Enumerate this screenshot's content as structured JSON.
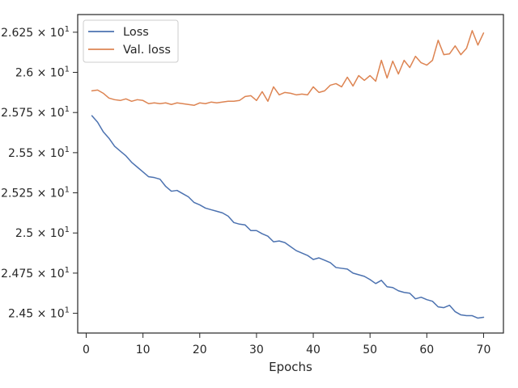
{
  "chart_data": {
    "type": "line",
    "title": "",
    "xlabel": "Epochs",
    "ylabel": "",
    "xlim": [
      -1.5,
      73.5
    ],
    "ylim": [
      24.377,
      26.36
    ],
    "x_ticks": [
      0,
      10,
      20,
      30,
      40,
      50,
      60,
      70
    ],
    "y_ticks": [
      {
        "value": 24.5,
        "label": "2.45 × 10¹"
      },
      {
        "value": 24.75,
        "label": "2.475 × 10¹"
      },
      {
        "value": 25.0,
        "label": "2.5 × 10¹"
      },
      {
        "value": 25.25,
        "label": "2.525 × 10¹"
      },
      {
        "value": 25.5,
        "label": "2.55 × 10¹"
      },
      {
        "value": 25.75,
        "label": "2.575 × 10¹"
      },
      {
        "value": 26.0,
        "label": "2.6 × 10¹"
      },
      {
        "value": 26.25,
        "label": "2.625 × 10¹"
      }
    ],
    "grid": false,
    "legend_position": "top-left",
    "x": [
      1,
      2,
      3,
      4,
      5,
      6,
      7,
      8,
      9,
      10,
      11,
      12,
      13,
      14,
      15,
      16,
      17,
      18,
      19,
      20,
      21,
      22,
      23,
      24,
      25,
      26,
      27,
      28,
      29,
      30,
      31,
      32,
      33,
      34,
      35,
      36,
      37,
      38,
      39,
      40,
      41,
      42,
      43,
      44,
      45,
      46,
      47,
      48,
      49,
      50,
      51,
      52,
      53,
      54,
      55,
      56,
      57,
      58,
      59,
      60,
      61,
      62,
      63,
      64,
      65,
      66,
      67,
      68,
      69,
      70
    ],
    "series": [
      {
        "name": "Loss",
        "color": "#4c72b0",
        "values": [
          25.73,
          25.69,
          25.63,
          25.59,
          25.54,
          25.51,
          25.48,
          25.44,
          25.41,
          25.38,
          25.35,
          25.345,
          25.335,
          25.29,
          25.26,
          25.265,
          25.245,
          25.225,
          25.19,
          25.175,
          25.155,
          25.145,
          25.135,
          25.125,
          25.105,
          25.065,
          25.055,
          25.05,
          25.015,
          25.015,
          24.995,
          24.98,
          24.945,
          24.95,
          24.94,
          24.915,
          24.89,
          24.875,
          24.86,
          24.835,
          24.845,
          24.83,
          24.815,
          24.785,
          24.78,
          24.775,
          24.75,
          24.74,
          24.73,
          24.71,
          24.685,
          24.705,
          24.665,
          24.66,
          24.64,
          24.63,
          24.625,
          24.59,
          24.6,
          24.585,
          24.575,
          24.54,
          24.535,
          24.55,
          24.51,
          24.49,
          24.485,
          24.485,
          24.47,
          24.475
        ]
      },
      {
        "name": "Val. loss",
        "color": "#dd8452",
        "values": [
          25.885,
          25.89,
          25.87,
          25.84,
          25.83,
          25.825,
          25.835,
          25.82,
          25.83,
          25.825,
          25.805,
          25.81,
          25.805,
          25.81,
          25.8,
          25.81,
          25.805,
          25.8,
          25.795,
          25.81,
          25.805,
          25.815,
          25.81,
          25.815,
          25.82,
          25.82,
          25.825,
          25.85,
          25.855,
          25.825,
          25.88,
          25.82,
          25.91,
          25.86,
          25.875,
          25.87,
          25.86,
          25.865,
          25.86,
          25.91,
          25.875,
          25.885,
          25.92,
          25.93,
          25.91,
          25.97,
          25.915,
          25.98,
          25.95,
          25.98,
          25.945,
          26.075,
          25.965,
          26.07,
          25.99,
          26.075,
          26.03,
          26.1,
          26.06,
          26.045,
          26.075,
          26.2,
          26.11,
          26.115,
          26.165,
          26.11,
          26.15,
          26.26,
          26.17,
          26.245
        ]
      }
    ]
  }
}
